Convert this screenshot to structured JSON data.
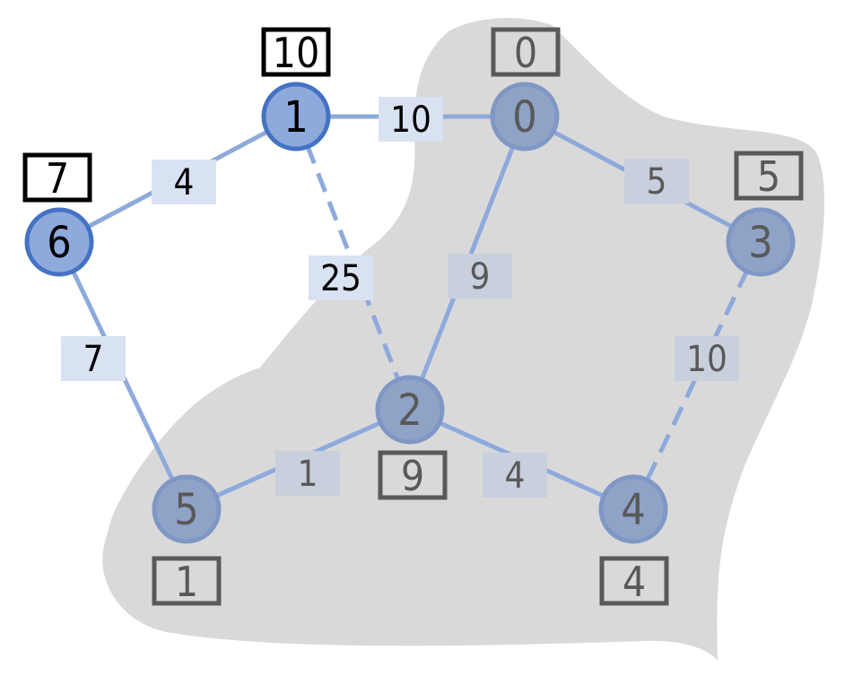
{
  "colors": {
    "region_fill": "#d9d9d9",
    "node_fill_active": "#8ea9db",
    "node_stroke_active": "#4472c4",
    "node_fill_muted": "#8fa3c7",
    "node_stroke_muted": "#7f97c4",
    "edge_color": "#8ea9db",
    "label_bg_light": "#d9e2f3",
    "label_bg_gray": "#c8cfdd",
    "text_dark": "#000000",
    "text_gray": "#595959",
    "box_active": "#000000",
    "box_muted": "#595959"
  },
  "nodes": [
    {
      "id": "0",
      "label": "0",
      "dist": "0",
      "active": false
    },
    {
      "id": "1",
      "label": "1",
      "dist": "10",
      "active": true
    },
    {
      "id": "2",
      "label": "2",
      "dist": "9",
      "active": false
    },
    {
      "id": "3",
      "label": "3",
      "dist": "5",
      "active": false
    },
    {
      "id": "4",
      "label": "4",
      "dist": "4",
      "active": false
    },
    {
      "id": "5",
      "label": "5",
      "dist": "1",
      "active": false
    },
    {
      "id": "6",
      "label": "6",
      "dist": "7",
      "active": true
    }
  ],
  "edges": [
    {
      "from": "1",
      "to": "0",
      "weight": "10",
      "dashed": false
    },
    {
      "from": "6",
      "to": "1",
      "weight": "4",
      "dashed": false
    },
    {
      "from": "1",
      "to": "2",
      "weight": "25",
      "dashed": true
    },
    {
      "from": "6",
      "to": "5",
      "weight": "7",
      "dashed": false
    },
    {
      "from": "0",
      "to": "3",
      "weight": "5",
      "dashed": false
    },
    {
      "from": "0",
      "to": "2",
      "weight": "9",
      "dashed": false
    },
    {
      "from": "3",
      "to": "4",
      "weight": "10",
      "dashed": true
    },
    {
      "from": "5",
      "to": "2",
      "weight": "1",
      "dashed": false
    },
    {
      "from": "2",
      "to": "4",
      "weight": "4",
      "dashed": false
    }
  ]
}
